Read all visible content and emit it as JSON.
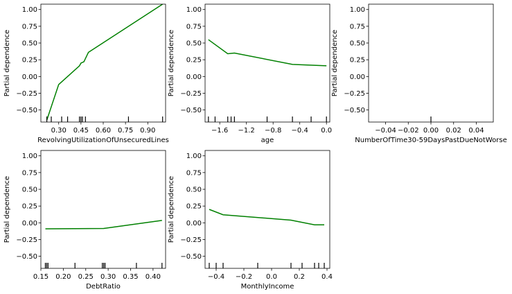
{
  "colors": {
    "line": "#008000",
    "axis": "#000000",
    "rug": "#000000"
  },
  "chart_data": [
    {
      "type": "line",
      "xlabel": "RevolvingUtilizationOfUnsecuredLines",
      "ylabel": "Partial dependence",
      "xlim": [
        0.18,
        1.02
      ],
      "ylim": [
        -0.68,
        1.08
      ],
      "xticks": [
        0.3,
        0.45,
        0.6,
        0.75,
        0.9
      ],
      "xtick_labels": [
        "0.30",
        "0.45",
        "0.60",
        "0.75",
        "0.90"
      ],
      "yticks": [
        -0.5,
        -0.25,
        0.0,
        0.25,
        0.5,
        0.75,
        1.0
      ],
      "ytick_labels": [
        "−0.50",
        "−0.25",
        "0.00",
        "0.25",
        "0.50",
        "0.75",
        "1.00"
      ],
      "x": [
        0.22,
        0.3,
        0.44,
        0.45,
        0.47,
        0.5,
        1.0
      ],
      "y": [
        -0.65,
        -0.12,
        0.16,
        0.2,
        0.22,
        0.36,
        1.08
      ],
      "rug": [
        0.22,
        0.25,
        0.32,
        0.36,
        0.44,
        0.45,
        0.46,
        0.48,
        0.77,
        1.0
      ]
    },
    {
      "type": "line",
      "xlabel": "age",
      "ylabel": "Partial dependence",
      "xlim": [
        -1.82,
        0.05
      ],
      "ylim": [
        -0.68,
        1.08
      ],
      "xticks": [
        -1.6,
        -1.2,
        -0.8,
        -0.4,
        0.0
      ],
      "xtick_labels": [
        "−1.6",
        "−1.2",
        "−0.8",
        "−0.4",
        "0.0"
      ],
      "yticks": [
        -0.5,
        -0.25,
        0.0,
        0.25,
        0.5,
        0.75,
        1.0
      ],
      "ytick_labels": [
        "−0.50",
        "−0.25",
        "0.00",
        "0.25",
        "0.50",
        "0.75",
        "1.00"
      ],
      "x": [
        -1.77,
        -1.48,
        -1.38,
        -0.51,
        0.0
      ],
      "y": [
        0.55,
        0.34,
        0.35,
        0.18,
        0.16
      ],
      "rug": [
        -1.77,
        -1.67,
        -1.48,
        -1.43,
        -1.38,
        -0.89,
        -0.51,
        -0.23,
        0.0
      ]
    },
    {
      "type": "line",
      "xlabel": "NumberOfTime30-59DaysPastDueNotWorse",
      "ylabel": "Partial dependence",
      "xlim": [
        -0.055,
        0.055
      ],
      "ylim": [
        -0.68,
        1.08
      ],
      "xticks": [
        -0.04,
        -0.02,
        0.0,
        0.02,
        0.04
      ],
      "xtick_labels": [
        "−0.04",
        "−0.02",
        "0.00",
        "0.02",
        "0.04"
      ],
      "yticks": [
        -0.5,
        -0.25,
        0.0,
        0.25,
        0.5,
        0.75,
        1.0
      ],
      "ytick_labels": [
        "−0.50",
        "−0.25",
        "0.00",
        "0.25",
        "0.50",
        "0.75",
        "1.00"
      ],
      "x": [],
      "y": [],
      "rug": [
        0.0
      ]
    },
    {
      "type": "line",
      "xlabel": "DebtRatio",
      "ylabel": "Partial dependence",
      "xlim": [
        0.15,
        0.428
      ],
      "ylim": [
        -0.68,
        1.08
      ],
      "xticks": [
        0.15,
        0.2,
        0.25,
        0.3,
        0.35,
        0.4
      ],
      "xtick_labels": [
        "0.15",
        "0.20",
        "0.25",
        "0.30",
        "0.35",
        "0.40"
      ],
      "yticks": [
        -0.5,
        -0.25,
        0.0,
        0.25,
        0.5,
        0.75,
        1.0
      ],
      "ytick_labels": [
        "−0.50",
        "−0.25",
        "0.00",
        "0.25",
        "0.50",
        "0.75",
        "1.00"
      ],
      "x": [
        0.16,
        0.29,
        0.42
      ],
      "y": [
        -0.09,
        -0.085,
        0.035
      ],
      "rug": [
        0.16,
        0.163,
        0.166,
        0.226,
        0.287,
        0.29,
        0.293,
        0.363,
        0.42
      ]
    },
    {
      "type": "line",
      "xlabel": "MonthlyIncome",
      "ylabel": "Partial dependence",
      "xlim": [
        -0.48,
        0.42
      ],
      "ylim": [
        -0.68,
        1.08
      ],
      "xticks": [
        -0.4,
        -0.2,
        0.0,
        0.2,
        0.4
      ],
      "xtick_labels": [
        "−0.4",
        "−0.2",
        "0.0",
        "0.2",
        "0.4"
      ],
      "yticks": [
        -0.5,
        -0.25,
        0.0,
        0.25,
        0.5,
        0.75,
        1.0
      ],
      "ytick_labels": [
        "−0.50",
        "−0.25",
        "0.00",
        "0.25",
        "0.50",
        "0.75",
        "1.00"
      ],
      "x": [
        -0.45,
        -0.35,
        0.14,
        0.31,
        0.38
      ],
      "y": [
        0.2,
        0.12,
        0.04,
        -0.03,
        -0.03
      ],
      "rug": [
        -0.45,
        -0.4,
        -0.35,
        -0.1,
        0.14,
        0.22,
        0.31,
        0.34,
        0.38
      ]
    }
  ]
}
